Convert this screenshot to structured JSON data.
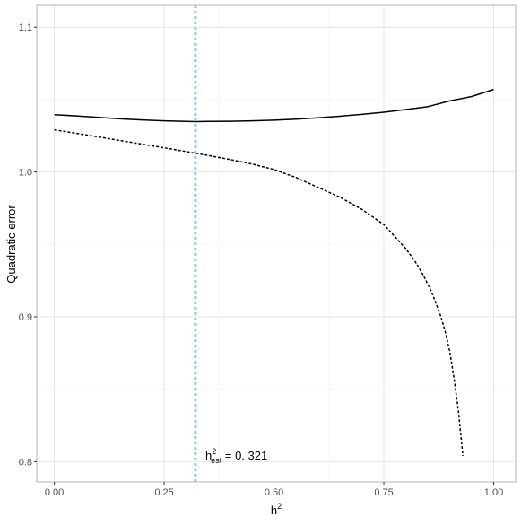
{
  "chart_data": {
    "type": "line",
    "title": "",
    "xlabel": "h",
    "xlabel_superscript": "2",
    "ylabel": "Quadratic error",
    "xlim": [
      -0.04,
      1.05
    ],
    "ylim": [
      0.786,
      1.115
    ],
    "x_ticks": [
      0,
      0.25,
      0.5,
      0.75,
      1
    ],
    "x_tick_labels": [
      "0.00",
      "0.25",
      "0.50",
      "0.75",
      "1.00"
    ],
    "y_ticks": [
      0.8,
      0.9,
      1.0,
      1.1
    ],
    "y_tick_labels": [
      "0.8",
      "0.9",
      "1.0",
      "1.1"
    ],
    "grid": true,
    "series": [
      {
        "style": "solid",
        "color": "#000000",
        "x": [
          0,
          0.05,
          0.1,
          0.15,
          0.2,
          0.25,
          0.3,
          0.321,
          0.35,
          0.4,
          0.45,
          0.5,
          0.55,
          0.6,
          0.65,
          0.7,
          0.75,
          0.8,
          0.85,
          0.9,
          0.95,
          1.0
        ],
        "y": [
          1.0396,
          1.0387,
          1.0377,
          1.0367,
          1.0359,
          1.0353,
          1.0349,
          1.0348,
          1.0349,
          1.035,
          1.0353,
          1.0358,
          1.0365,
          1.0374,
          1.0385,
          1.0398,
          1.0413,
          1.0431,
          1.0451,
          1.0491,
          1.0521,
          1.057
        ]
      },
      {
        "style": "dotted",
        "color": "#000000",
        "x": [
          0,
          0.05,
          0.1,
          0.15,
          0.2,
          0.25,
          0.3,
          0.35,
          0.4,
          0.45,
          0.5,
          0.55,
          0.6,
          0.65,
          0.7,
          0.75,
          0.8,
          0.82,
          0.84,
          0.86,
          0.88,
          0.89,
          0.9,
          0.91,
          0.92,
          0.93
        ],
        "y": [
          1.0291,
          1.0267,
          1.0242,
          1.0217,
          1.0192,
          1.0167,
          1.0141,
          1.0114,
          1.0086,
          1.0055,
          1.0017,
          0.9962,
          0.9894,
          0.9826,
          0.9742,
          0.9637,
          0.9471,
          0.9388,
          0.9287,
          0.9163,
          0.9001,
          0.8896,
          0.8762,
          0.8573,
          0.8345,
          0.804
        ]
      }
    ],
    "vline": {
      "x": 0.321,
      "color": "#87ceeb",
      "style": "dotted"
    },
    "annotation": {
      "x": 0.34,
      "y": 0.804,
      "base": "h",
      "sup": "2",
      "sub": "est",
      "text": " = 0. 321"
    }
  }
}
